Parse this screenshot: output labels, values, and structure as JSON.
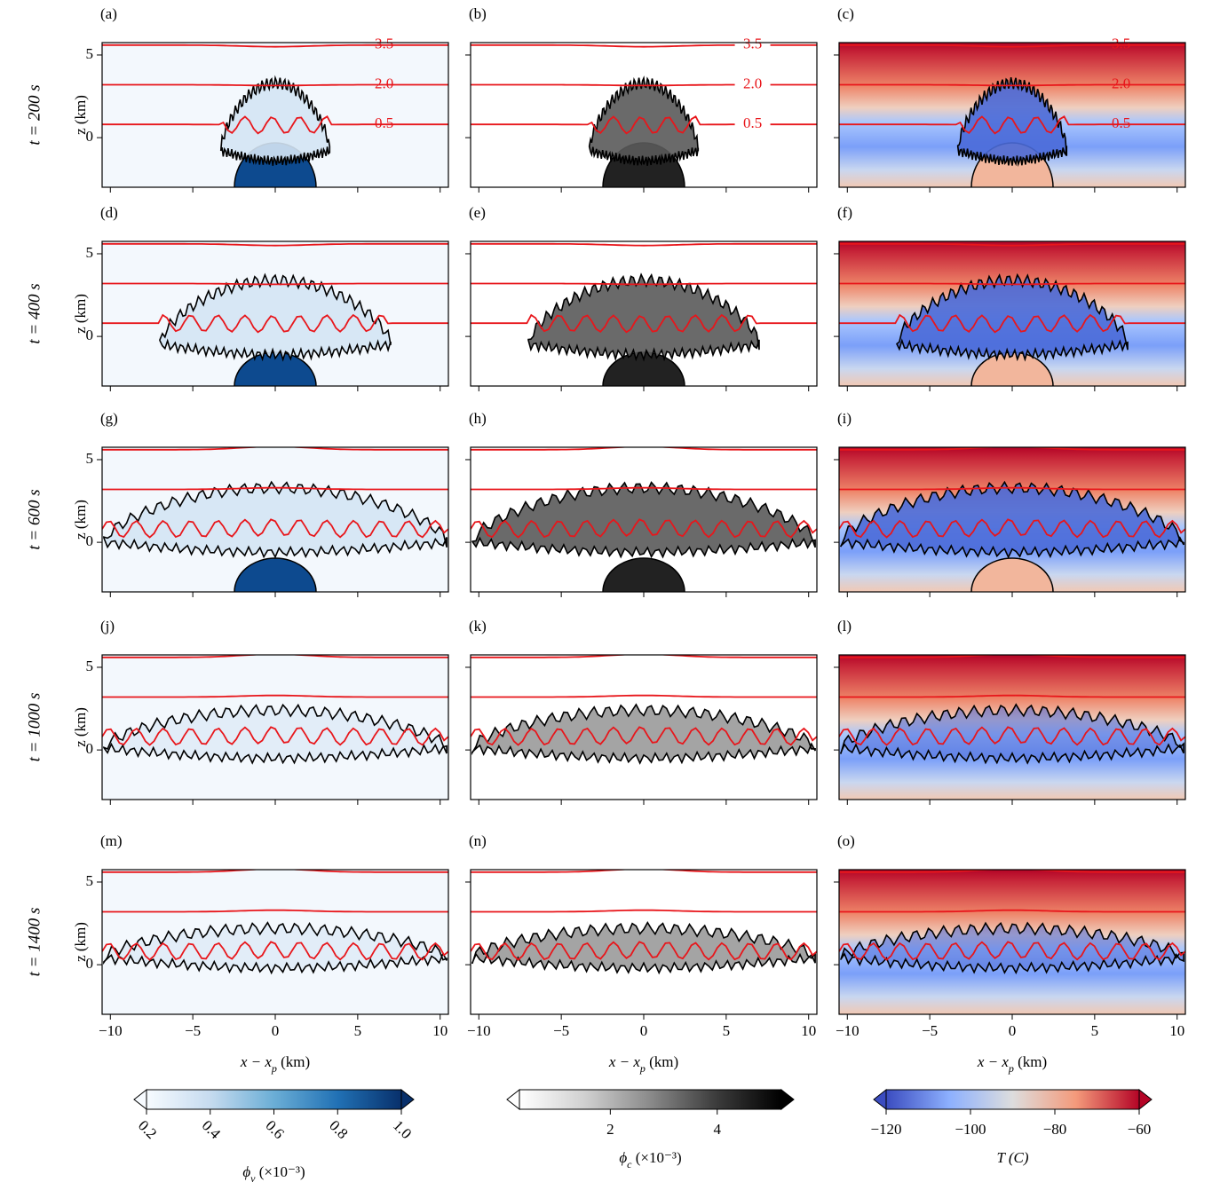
{
  "chart_data": {
    "type": "heatmap-grid",
    "xlim": [
      -10.5,
      10.5
    ],
    "xticks": [
      {
        "value": -10,
        "label": "−10"
      },
      {
        "value": -5,
        "label": "−5"
      },
      0,
      5,
      10
    ],
    "ylim": [
      -3,
      5.75
    ],
    "yticks": [
      0,
      5
    ],
    "xlabel": {
      "symbol": "x − x",
      "sub": "p",
      "unit": " (km)"
    },
    "ylabel": "z (km)",
    "rows": [
      "t = 200 s",
      "t = 400 s",
      "t = 600 s",
      "t = 1000 s",
      "t = 1400 s"
    ],
    "panels": [
      [
        "(a)",
        "(b)",
        "(c)"
      ],
      [
        "(d)",
        "(e)",
        "(f)"
      ],
      [
        "(g)",
        "(h)",
        "(i)"
      ],
      [
        "(j)",
        "(k)",
        "(l)"
      ],
      [
        "(m)",
        "(n)",
        "(o)"
      ]
    ],
    "contour_labels": [
      {
        "value": 3.5,
        "label": "3.5"
      },
      {
        "value": 2,
        "label": "2.0"
      },
      {
        "value": 0.5,
        "label": "0.5"
      }
    ],
    "contour_color": "#e8161b",
    "colorbars": [
      {
        "label": {
          "symbol": "ϕ",
          "sub": "v",
          "unit": " (×10⁻³)"
        },
        "lim": [
          0.2,
          1.0
        ],
        "ticks": [
          0.2,
          0.4,
          0.6,
          0.8,
          {
            "value": 1,
            "label": "1.0"
          }
        ],
        "colors": [
          "#f7fbff",
          "#c6dbef",
          "#6baed6",
          "#2171b5",
          "#08306b"
        ]
      },
      {
        "label": {
          "symbol": "ϕ",
          "sub": "c",
          "unit": " (×10⁻³)"
        },
        "lim": [
          0.3,
          5.2
        ],
        "ticks": [
          2,
          4
        ],
        "colors": [
          "#ffffff",
          "#d0d0d0",
          "#8a8a8a",
          "#3c3c3c",
          "#000000"
        ]
      },
      {
        "label": {
          "symbol": "T (C)",
          "sub": "",
          "unit": ""
        },
        "lim": [
          -120,
          -60
        ],
        "ticks": [
          {
            "value": -120,
            "label": "−120"
          },
          {
            "value": -100,
            "label": "−100"
          },
          {
            "value": -80,
            "label": "−80"
          },
          {
            "value": -60,
            "label": "−60"
          }
        ],
        "colors": [
          "#3b4cc0",
          "#8db0fe",
          "#dddddd",
          "#f49a7b",
          "#b40426"
        ]
      }
    ]
  }
}
